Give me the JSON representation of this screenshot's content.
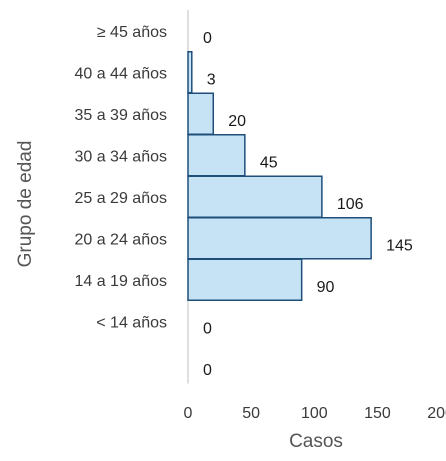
{
  "chart_data": {
    "type": "bar",
    "orientation": "horizontal",
    "categories": [
      "≥ 45 años",
      "40 a 44 años",
      "35 a 39 años",
      "30 a 34 años",
      "25 a 29 años",
      "20 a 24 años",
      "14 a 19 años",
      "< 14 años",
      ""
    ],
    "values": [
      0,
      3,
      20,
      45,
      106,
      145,
      90,
      0,
      0
    ],
    "data_labels": [
      "0",
      "3",
      "20",
      "45",
      "106",
      "145",
      "90",
      "0",
      "0"
    ],
    "xlabel": "Casos",
    "ylabel": "Grupo de edad",
    "xlim": [
      0,
      200
    ],
    "x_ticks": [
      "0",
      "50",
      "100",
      "150",
      "200"
    ],
    "grid": false,
    "bar_fill": "#c5e3f5",
    "bar_stroke": "#1f4e79",
    "axis_color": "#bfbfbf"
  }
}
